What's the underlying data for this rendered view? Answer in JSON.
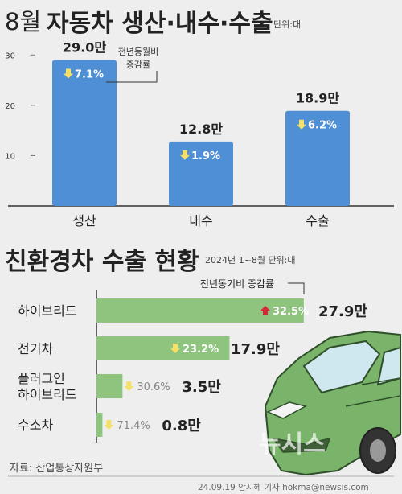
{
  "header": {
    "month": "8월",
    "title": "자동차 생산·내수·수출",
    "unit": "단위:대"
  },
  "section2": {
    "title": "친환경차 수출 현황",
    "subtitle": "2024년 1~8월 단위:대",
    "annotation": "전년동기비 증감률"
  },
  "colors": {
    "bar1": "#4f8fd6",
    "bar2": "#8ec47e",
    "down_arrow": "#f5e06a",
    "up_arrow": "#d6263a"
  },
  "footer": {
    "source": "자료: 산업통상자원부",
    "credit": "24.09.19 안지혜 기자 hokma@newsis.com"
  },
  "chart_data": [
    {
      "type": "bar",
      "categories": [
        "생산",
        "내수",
        "수출"
      ],
      "values": [
        29.0,
        12.8,
        18.9
      ],
      "value_labels": [
        "29.0만",
        "12.8만",
        "18.9만"
      ],
      "change_labels": [
        "7.1%",
        "1.9%",
        "6.2%"
      ],
      "change_direction": [
        "down",
        "down",
        "down"
      ],
      "annotation": "전년동월비\n증감률",
      "yticks": [
        10,
        20,
        30
      ],
      "ylim": [
        0,
        31
      ],
      "grid": false
    },
    {
      "type": "bar",
      "orientation": "horizontal",
      "categories": [
        "하이브리드",
        "전기차",
        "플러그인\n하이브리드",
        "수소차"
      ],
      "values": [
        27.9,
        17.9,
        3.5,
        0.8
      ],
      "value_labels": [
        "27.9만",
        "17.9만",
        "3.5만",
        "0.8만"
      ],
      "change_labels": [
        "32.5%",
        "23.2%",
        "30.6%",
        "71.4%"
      ],
      "change_direction": [
        "up",
        "down",
        "down",
        "down"
      ],
      "xlim": [
        0,
        29
      ]
    }
  ]
}
